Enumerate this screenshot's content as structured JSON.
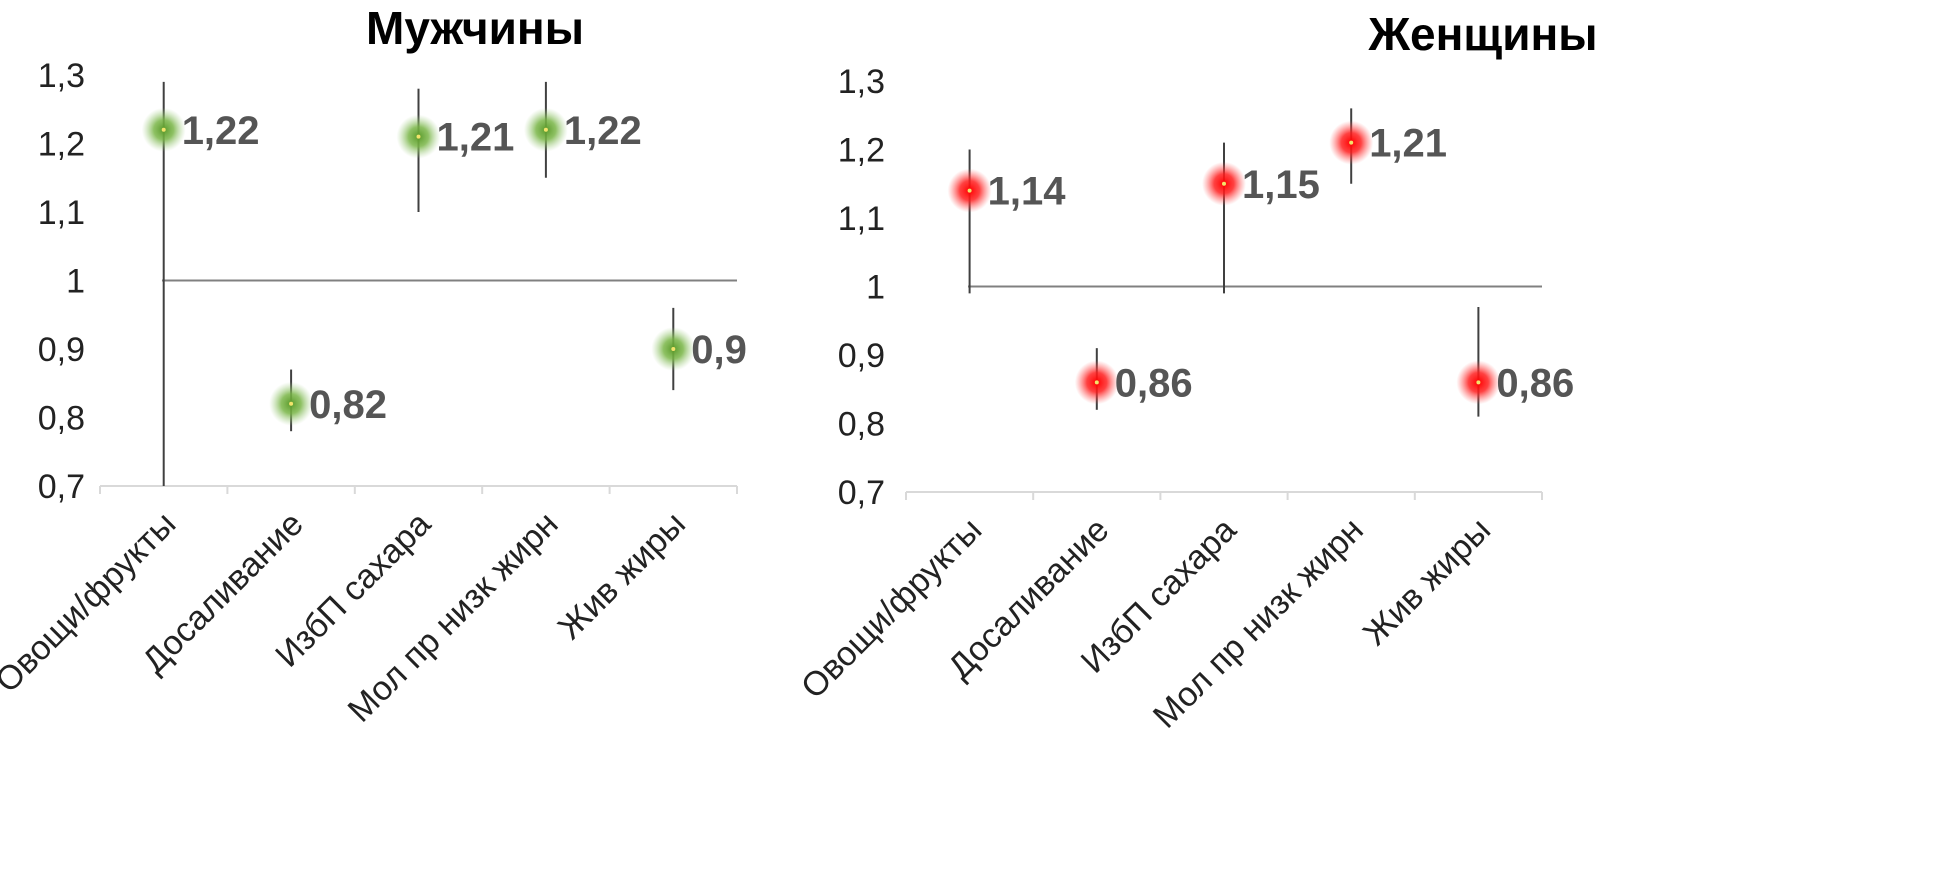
{
  "chart_data": [
    {
      "type": "scatter",
      "title": "Мужчины",
      "categories": [
        "Овощи/фрукты",
        "Досаливание",
        "ИзбП сахара",
        "Мол пр низк жирн",
        "Жив жиры"
      ],
      "series": [
        {
          "values": [
            1.22,
            0.82,
            1.21,
            1.22,
            0.9
          ],
          "labels": [
            "1,22",
            "0,82",
            "1,21",
            "1,22",
            "0,9"
          ],
          "error_low": [
            0.7,
            0.78,
            1.1,
            1.15,
            0.84
          ],
          "error_high": [
            1.29,
            0.87,
            1.28,
            1.29,
            0.96
          ]
        }
      ],
      "reference_line": 1,
      "ylim": [
        0.7,
        1.3
      ],
      "yticks": [
        "0,7",
        "0,8",
        "0,9",
        "1",
        "1,1",
        "1,2",
        "1,3"
      ],
      "marker_color": "#6fae3a",
      "grid": false,
      "legend": "none"
    },
    {
      "type": "scatter",
      "title": "Женщины",
      "categories": [
        "Овощи/фрукты",
        "Досаливание",
        "ИзбП сахара",
        "Мол пр низк жирн",
        "Жив жиры"
      ],
      "series": [
        {
          "values": [
            1.14,
            0.86,
            1.15,
            1.21,
            0.86
          ],
          "labels": [
            "1,14",
            "0,86",
            "1,15",
            "1,21",
            "0,86"
          ],
          "error_low": [
            0.99,
            0.82,
            0.99,
            1.15,
            0.81
          ],
          "error_high": [
            1.2,
            0.91,
            1.21,
            1.26,
            0.97
          ]
        }
      ],
      "reference_line": 1,
      "ylim": [
        0.7,
        1.3
      ],
      "yticks": [
        "0,7",
        "0,8",
        "0,9",
        "1",
        "1,1",
        "1,2",
        "1,3"
      ],
      "marker_color": "#ff1a1a",
      "grid": false,
      "legend": "none"
    }
  ]
}
